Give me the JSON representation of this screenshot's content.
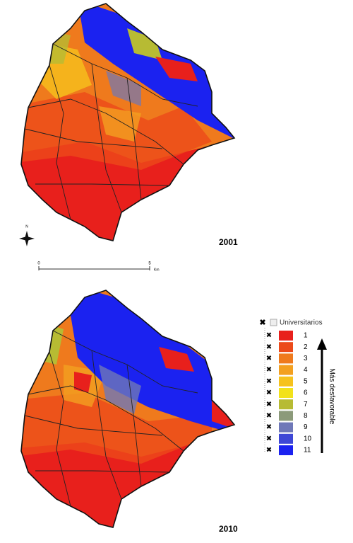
{
  "maps": [
    {
      "year": "2001"
    },
    {
      "year": "2010"
    }
  ],
  "north": "N",
  "scale": {
    "start": "0",
    "end": "5",
    "unit": "Km"
  },
  "legend": {
    "title": "Universitarios",
    "arrow_label": "Más desfavorable",
    "items": [
      {
        "label": "1",
        "color": "#e8201c"
      },
      {
        "label": "2",
        "color": "#ec4a1a"
      },
      {
        "label": "3",
        "color": "#ef7a1d"
      },
      {
        "label": "4",
        "color": "#f3a020"
      },
      {
        "label": "5",
        "color": "#f6c21d"
      },
      {
        "label": "6",
        "color": "#f2e21b"
      },
      {
        "label": "7",
        "color": "#b7bb33"
      },
      {
        "label": "8",
        "color": "#8c9a7a"
      },
      {
        "label": "9",
        "color": "#6f78b8"
      },
      {
        "label": "10",
        "color": "#3e47d6"
      },
      {
        "label": "11",
        "color": "#1b22f0"
      }
    ]
  }
}
